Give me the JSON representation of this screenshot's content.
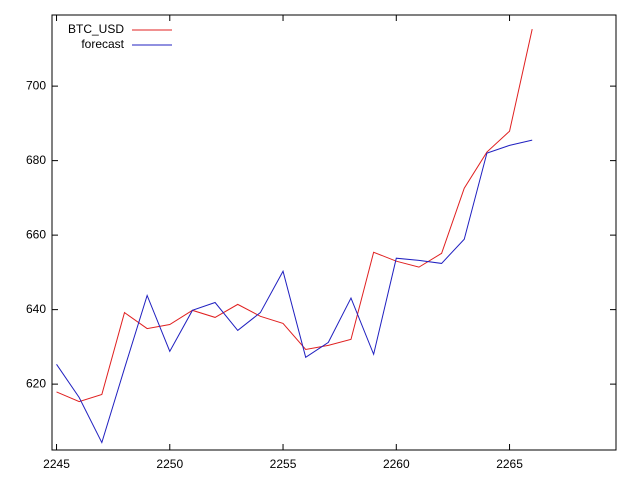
{
  "chart_data": {
    "type": "line",
    "x": [
      2245,
      2246,
      2247,
      2248,
      2249,
      2250,
      2251,
      2252,
      2253,
      2254,
      2255,
      2256,
      2257,
      2258,
      2259,
      2260,
      2261,
      2262,
      2263,
      2264,
      2265,
      2266
    ],
    "series": [
      {
        "name": "BTC_USD",
        "color": "#e02020",
        "values": [
          617.9,
          615.3,
          617.2,
          639.2,
          634.9,
          636,
          639.8,
          637.9,
          641.4,
          638.2,
          636.3,
          629.3,
          630.4,
          632,
          655.4,
          653,
          651.4,
          655.1,
          672.6,
          682.3,
          687.9,
          715.3
        ]
      },
      {
        "name": "forecast",
        "color": "#2020c0",
        "values": [
          625.3,
          616.4,
          604.3,
          624.2,
          643.8,
          628.8,
          639.8,
          641.9,
          634.4,
          639.2,
          650.3,
          627.2,
          631.2,
          643.1,
          628,
          653.8,
          653.2,
          652.4,
          658.9,
          682,
          684.1,
          685.5
        ]
      }
    ],
    "xlim": [
      2244.8,
      2269.7
    ],
    "ylim": [
      602.3,
      719.1
    ],
    "xticks": [
      2245,
      2250,
      2255,
      2260,
      2265
    ],
    "yticks": [
      620,
      640,
      660,
      680,
      700
    ],
    "legend": "top-left"
  }
}
